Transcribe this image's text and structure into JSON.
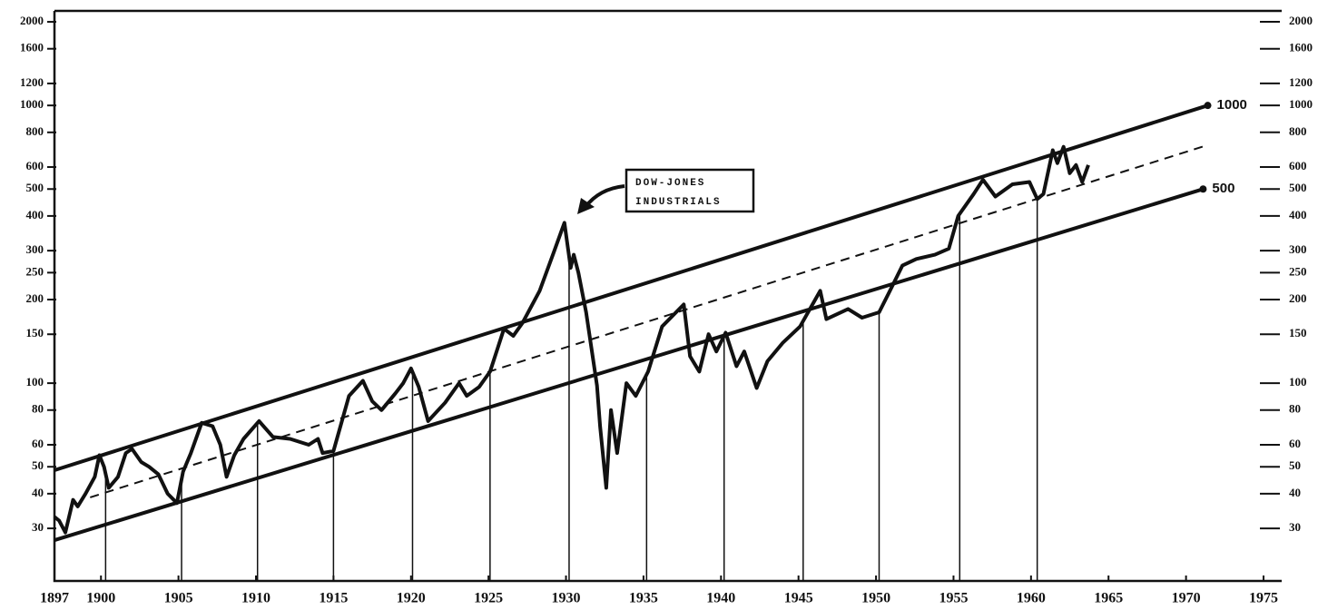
{
  "chart_data": {
    "type": "line",
    "yscale": "log",
    "xlim": [
      1897,
      1975
    ],
    "ylim": [
      19.4,
      2190
    ],
    "xticks": [
      1897,
      1900,
      1905,
      1910,
      1915,
      1920,
      1925,
      1930,
      1935,
      1940,
      1945,
      1950,
      1955,
      1960,
      1965,
      1970,
      1975
    ],
    "yticks": [
      30,
      40,
      50,
      60,
      80,
      100,
      150,
      200,
      250,
      300,
      400,
      500,
      600,
      800,
      1000,
      1200,
      1600,
      2000
    ],
    "annotation": [
      "DOW-JONES",
      "INDUSTRIALS"
    ],
    "verticals": [
      1900.3,
      1905.2,
      1910.1,
      1915.0,
      1920.1,
      1925.1,
      1930.2,
      1935.2,
      1940.2,
      1945.3,
      1950.2,
      1955.4,
      1960.4
    ],
    "series": [
      {
        "color": "#111111",
        "x": [
          1897.0,
          1897.3,
          1897.7,
          1898.2,
          1898.5,
          1899.0,
          1899.6,
          1899.9,
          1900.2,
          1900.5,
          1901.1,
          1901.6,
          1902.0,
          1902.6,
          1903.1,
          1903.7,
          1904.3,
          1904.9,
          1905.3,
          1905.8,
          1906.5,
          1907.2,
          1907.7,
          1908.1,
          1908.6,
          1909.2,
          1910.2,
          1911.1,
          1912.2,
          1913.4,
          1914.0,
          1914.3,
          1915.0,
          1916.0,
          1916.9,
          1917.5,
          1918.1,
          1919.0,
          1919.5,
          1920.0,
          1920.5,
          1921.1,
          1922.2,
          1923.1,
          1923.6,
          1924.4,
          1925.1,
          1926.0,
          1926.6,
          1927.2,
          1928.3,
          1929.2,
          1929.9,
          1930.3,
          1930.5,
          1930.8,
          1931.3,
          1932.0,
          1932.2,
          1932.6,
          1932.9,
          1933.3,
          1933.9,
          1934.5,
          1935.3,
          1936.2,
          1937.6,
          1938.0,
          1938.6,
          1939.2,
          1939.7,
          1940.3,
          1941.0,
          1941.5,
          1942.3,
          1943.0,
          1944.0,
          1945.1,
          1946.4,
          1946.8,
          1948.2,
          1949.1,
          1950.2,
          1950.9,
          1951.7,
          1952.6,
          1953.8,
          1954.7,
          1955.3,
          1956.3,
          1956.9,
          1957.7,
          1958.8,
          1959.9,
          1960.4,
          1960.8,
          1961.4,
          1961.7,
          1962.1,
          1962.5,
          1962.9,
          1963.3,
          1963.7
        ],
        "values": [
          33,
          32,
          29,
          38,
          36,
          40,
          46,
          55,
          50,
          42,
          46,
          56,
          58,
          52,
          50,
          47,
          40,
          37,
          48,
          56,
          72,
          70,
          60,
          46,
          55,
          63,
          73,
          64,
          63,
          60,
          63,
          56,
          57,
          90,
          102,
          86,
          80,
          92,
          100,
          113,
          97,
          73,
          85,
          100,
          90,
          97,
          110,
          157,
          148,
          165,
          215,
          295,
          378,
          260,
          290,
          250,
          180,
          98,
          70,
          42,
          80,
          56,
          100,
          90,
          110,
          160,
          192,
          125,
          110,
          150,
          130,
          152,
          115,
          130,
          96,
          120,
          140,
          160,
          215,
          170,
          185,
          172,
          180,
          215,
          265,
          280,
          290,
          305,
          400,
          480,
          540,
          470,
          520,
          530,
          460,
          480,
          690,
          620,
          710,
          570,
          610,
          530,
          610
        ]
      },
      {
        "name": "1000",
        "color": "#111111",
        "x": [
          1897,
          1971.4
        ],
        "values": [
          48.6,
          1000
        ]
      },
      {
        "name": "500",
        "color": "#111111",
        "x": [
          1897,
          1971.1
        ],
        "values": [
          27.2,
          500
        ]
      },
      {
        "color": "#111111",
        "dashed": true,
        "x": [
          1899.3,
          1971.4
        ],
        "values": [
          38.8,
          720
        ]
      }
    ]
  }
}
